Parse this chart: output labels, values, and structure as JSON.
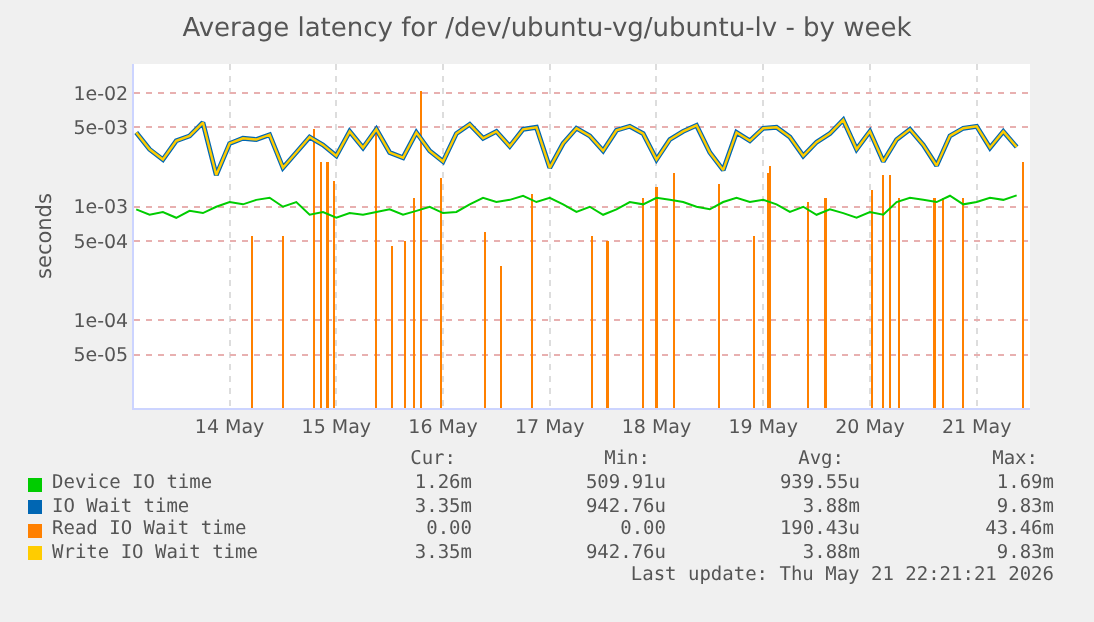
{
  "chart_data": {
    "type": "line",
    "title": "Average latency for /dev/ubuntu-vg/ubuntu-lv - by week",
    "ylabel": "seconds",
    "log": "y",
    "grid": true,
    "legend": "bottom",
    "line_style": "solid",
    "marker": "none",
    "xlim": [
      "2026-05-13T14:30",
      "2026-05-22T00:00"
    ],
    "xticks": [
      {
        "value": "2026-05-14T12:00",
        "label": "14 May"
      },
      {
        "value": "2026-05-15T12:00",
        "label": "15 May"
      },
      {
        "value": "2026-05-16T12:00",
        "label": "16 May"
      },
      {
        "value": "2026-05-17T12:00",
        "label": "17 May"
      },
      {
        "value": "2026-05-18T12:00",
        "label": "18 May"
      },
      {
        "value": "2026-05-19T12:00",
        "label": "19 May"
      },
      {
        "value": "2026-05-20T12:00",
        "label": "20 May"
      },
      {
        "value": "2026-05-21T12:00",
        "label": "21 May"
      }
    ],
    "ylim": [
      1.7e-05,
      0.018
    ],
    "yticks": [
      {
        "value": 5e-05,
        "label": "5e-05"
      },
      {
        "value": 0.0001,
        "label": "1e-04"
      },
      {
        "value": 0.0005,
        "label": "5e-04"
      },
      {
        "value": 0.001,
        "label": "1e-03"
      },
      {
        "value": 0.005,
        "label": "5e-03"
      },
      {
        "value": 0.01,
        "label": "1e-02"
      }
    ],
    "x": [
      "2026-05-13T15:00",
      "2026-05-13T18:00",
      "2026-05-13T21:00",
      "2026-05-14T00:00",
      "2026-05-14T03:00",
      "2026-05-14T06:00",
      "2026-05-14T09:00",
      "2026-05-14T12:00",
      "2026-05-14T15:00",
      "2026-05-14T18:00",
      "2026-05-14T21:00",
      "2026-05-15T00:00",
      "2026-05-15T03:00",
      "2026-05-15T06:00",
      "2026-05-15T09:00",
      "2026-05-15T12:00",
      "2026-05-15T15:00",
      "2026-05-15T18:00",
      "2026-05-15T21:00",
      "2026-05-16T00:00",
      "2026-05-16T03:00",
      "2026-05-16T06:00",
      "2026-05-16T09:00",
      "2026-05-16T12:00",
      "2026-05-16T15:00",
      "2026-05-16T18:00",
      "2026-05-16T21:00",
      "2026-05-17T00:00",
      "2026-05-17T03:00",
      "2026-05-17T06:00",
      "2026-05-17T09:00",
      "2026-05-17T12:00",
      "2026-05-17T15:00",
      "2026-05-17T18:00",
      "2026-05-17T21:00",
      "2026-05-18T00:00",
      "2026-05-18T03:00",
      "2026-05-18T06:00",
      "2026-05-18T09:00",
      "2026-05-18T12:00",
      "2026-05-18T15:00",
      "2026-05-18T18:00",
      "2026-05-18T21:00",
      "2026-05-19T00:00",
      "2026-05-19T03:00",
      "2026-05-19T06:00",
      "2026-05-19T09:00",
      "2026-05-19T12:00",
      "2026-05-19T15:00",
      "2026-05-19T18:00",
      "2026-05-19T21:00",
      "2026-05-20T00:00",
      "2026-05-20T03:00",
      "2026-05-20T06:00",
      "2026-05-20T09:00",
      "2026-05-20T12:00",
      "2026-05-20T15:00",
      "2026-05-20T18:00",
      "2026-05-20T21:00",
      "2026-05-21T00:00",
      "2026-05-21T03:00",
      "2026-05-21T06:00",
      "2026-05-21T09:00",
      "2026-05-21T12:00",
      "2026-05-21T15:00",
      "2026-05-21T18:00",
      "2026-05-21T21:00"
    ],
    "series": [
      {
        "name": "Device IO time",
        "color": "#00cc00",
        "values": [
          0.00095,
          0.00085,
          0.0009,
          0.0008,
          0.00092,
          0.00088,
          0.001,
          0.0011,
          0.00105,
          0.00115,
          0.0012,
          0.001,
          0.0011,
          0.00085,
          0.0009,
          0.0008,
          0.00088,
          0.00085,
          0.0009,
          0.00095,
          0.00085,
          0.00092,
          0.001,
          0.00088,
          0.0009,
          0.00105,
          0.0012,
          0.0011,
          0.00115,
          0.00125,
          0.0011,
          0.0012,
          0.00105,
          0.0009,
          0.001,
          0.00085,
          0.00095,
          0.0011,
          0.00105,
          0.0012,
          0.00115,
          0.0011,
          0.001,
          0.00095,
          0.0011,
          0.0012,
          0.0011,
          0.00115,
          0.00105,
          0.0009,
          0.001,
          0.00085,
          0.00095,
          0.00088,
          0.0008,
          0.0009,
          0.00085,
          0.0011,
          0.0012,
          0.00115,
          0.0011,
          0.00125,
          0.00105,
          0.0011,
          0.0012,
          0.00115,
          0.00126
        ]
      },
      {
        "name": "IO Wait time",
        "color": "#0066b3",
        "values": [
          0.0045,
          0.0032,
          0.0026,
          0.0038,
          0.0042,
          0.0055,
          0.0019,
          0.0036,
          0.004,
          0.0039,
          0.0043,
          0.0022,
          0.003,
          0.0041,
          0.0035,
          0.0028,
          0.0046,
          0.0033,
          0.0048,
          0.003,
          0.0027,
          0.0045,
          0.0031,
          0.0025,
          0.0044,
          0.0053,
          0.004,
          0.0046,
          0.0034,
          0.0048,
          0.005,
          0.0022,
          0.0036,
          0.0049,
          0.0042,
          0.0031,
          0.0047,
          0.0051,
          0.0044,
          0.0026,
          0.0039,
          0.0046,
          0.0052,
          0.003,
          0.0021,
          0.0045,
          0.0038,
          0.0049,
          0.005,
          0.0041,
          0.0028,
          0.0037,
          0.0044,
          0.0058,
          0.0032,
          0.0046,
          0.0025,
          0.0039,
          0.0048,
          0.0035,
          0.0023,
          0.0042,
          0.0049,
          0.0051,
          0.0033,
          0.0046,
          0.00335
        ]
      },
      {
        "name": "Read IO Wait time",
        "color": "#ff8000",
        "type": "bar",
        "x": [
          "2026-05-14T17:00",
          "2026-05-15T00:00",
          "2026-05-15T07:00",
          "2026-05-15T08:30",
          "2026-05-15T10:00",
          "2026-05-15T11:30",
          "2026-05-15T21:00",
          "2026-05-16T00:30",
          "2026-05-16T03:30",
          "2026-05-16T05:30",
          "2026-05-16T07:00",
          "2026-05-16T11:30",
          "2026-05-16T21:30",
          "2026-05-17T01:00",
          "2026-05-17T08:00",
          "2026-05-17T21:30",
          "2026-05-18T01:00",
          "2026-05-18T09:00",
          "2026-05-18T12:00",
          "2026-05-18T16:00",
          "2026-05-19T02:00",
          "2026-05-19T10:00",
          "2026-05-19T13:00",
          "2026-05-19T13:30",
          "2026-05-19T22:00",
          "2026-05-20T02:00",
          "2026-05-20T12:30",
          "2026-05-20T15:00",
          "2026-05-20T16:30",
          "2026-05-20T18:30",
          "2026-05-21T02:30",
          "2026-05-21T04:30",
          "2026-05-21T09:00",
          "2026-05-21T22:30"
        ],
        "values": [
          0.00055,
          0.00055,
          0.0048,
          0.0025,
          0.0025,
          0.0017,
          0.0048,
          0.00045,
          0.0005,
          0.0012,
          0.0105,
          0.0018,
          0.0006,
          0.0003,
          0.0013,
          0.00055,
          0.0005,
          0.0012,
          0.0015,
          0.002,
          0.0016,
          0.00055,
          0.002,
          0.0023,
          0.0011,
          0.0012,
          0.0014,
          0.0019,
          0.0019,
          0.0012,
          0.0012,
          0.0012,
          0.0012,
          0.0025
        ]
      },
      {
        "name": "Write IO Wait time",
        "color": "#ffcc00",
        "values": [
          0.0045,
          0.0032,
          0.0026,
          0.0038,
          0.0042,
          0.0055,
          0.0019,
          0.0036,
          0.004,
          0.0039,
          0.0043,
          0.0022,
          0.003,
          0.0041,
          0.0035,
          0.0028,
          0.0046,
          0.0033,
          0.0048,
          0.003,
          0.0027,
          0.0045,
          0.0031,
          0.0025,
          0.0044,
          0.0053,
          0.004,
          0.0046,
          0.0034,
          0.0048,
          0.005,
          0.0022,
          0.0036,
          0.0049,
          0.0042,
          0.0031,
          0.0047,
          0.0051,
          0.0044,
          0.0026,
          0.0039,
          0.0046,
          0.0052,
          0.003,
          0.0021,
          0.0045,
          0.0038,
          0.0049,
          0.005,
          0.0041,
          0.0028,
          0.0037,
          0.0044,
          0.0058,
          0.0032,
          0.0046,
          0.0025,
          0.0039,
          0.0048,
          0.0035,
          0.0023,
          0.0042,
          0.0049,
          0.0051,
          0.0033,
          0.0046,
          0.00335
        ]
      }
    ],
    "annotations": [
      "Cur:",
      "Min:",
      "Avg:",
      "Max:",
      "1.26m",
      "509.91u",
      "939.55u",
      "1.69m",
      "3.35m",
      "942.76u",
      "3.88m",
      "9.83m",
      "0.00",
      "0.00",
      "190.43u",
      "43.46m",
      "3.35m",
      "942.76u",
      "3.88m",
      "9.83m",
      "Last update: Thu May 21 22:21:21 2026"
    ]
  }
}
